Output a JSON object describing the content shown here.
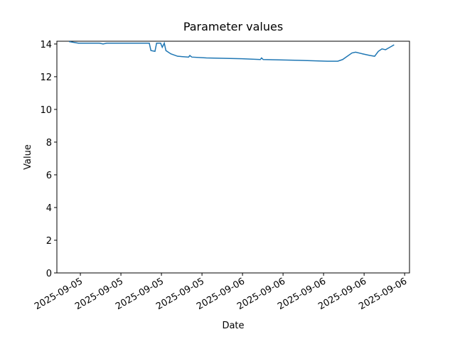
{
  "chart_data": {
    "type": "line",
    "title": "Parameter values",
    "x_label": "Date",
    "y_label": "Value",
    "x": [
      -0.28,
      -0.05,
      0.47,
      0.56,
      0.65,
      1.18,
      1.7,
      1.74,
      1.84,
      1.88,
      1.98,
      2.02,
      2.07,
      2.11,
      2.23,
      2.4,
      2.67,
      2.7,
      2.75,
      3.11,
      3.98,
      4.44,
      4.47,
      4.51,
      5.39,
      6.09,
      6.35,
      6.47,
      6.7,
      6.79,
      6.96,
      7.14,
      7.26,
      7.35,
      7.44,
      7.53,
      7.6,
      7.67,
      7.74
    ],
    "series": [
      {
        "color": "#1f77b4",
        "values": [
          14.15,
          14.05,
          14.05,
          14.0,
          14.05,
          14.05,
          14.05,
          13.6,
          13.55,
          14.05,
          14.05,
          13.8,
          14.05,
          13.6,
          13.4,
          13.25,
          13.2,
          13.3,
          13.2,
          13.15,
          13.1,
          13.05,
          13.15,
          13.05,
          13.0,
          12.95,
          12.95,
          13.05,
          13.45,
          13.5,
          13.4,
          13.3,
          13.25,
          13.55,
          13.7,
          13.65,
          13.75,
          13.85,
          13.95
        ]
      }
    ],
    "xlim": [
      -0.58,
      8.12
    ],
    "xticks": [
      {
        "value": 0,
        "label": "2025-09-05"
      },
      {
        "value": 1,
        "label": "2025-09-05"
      },
      {
        "value": 2,
        "label": "2025-09-05"
      },
      {
        "value": 3,
        "label": "2025-09-05"
      },
      {
        "value": 4,
        "label": "2025-09-06"
      },
      {
        "value": 5,
        "label": "2025-09-06"
      },
      {
        "value": 6,
        "label": "2025-09-06"
      },
      {
        "value": 7,
        "label": "2025-09-06"
      },
      {
        "value": 8,
        "label": "2025-09-06"
      }
    ],
    "ylim": [
      0,
      14.17
    ],
    "yticks": [
      0,
      2,
      4,
      6,
      8,
      10,
      12,
      14
    ]
  }
}
